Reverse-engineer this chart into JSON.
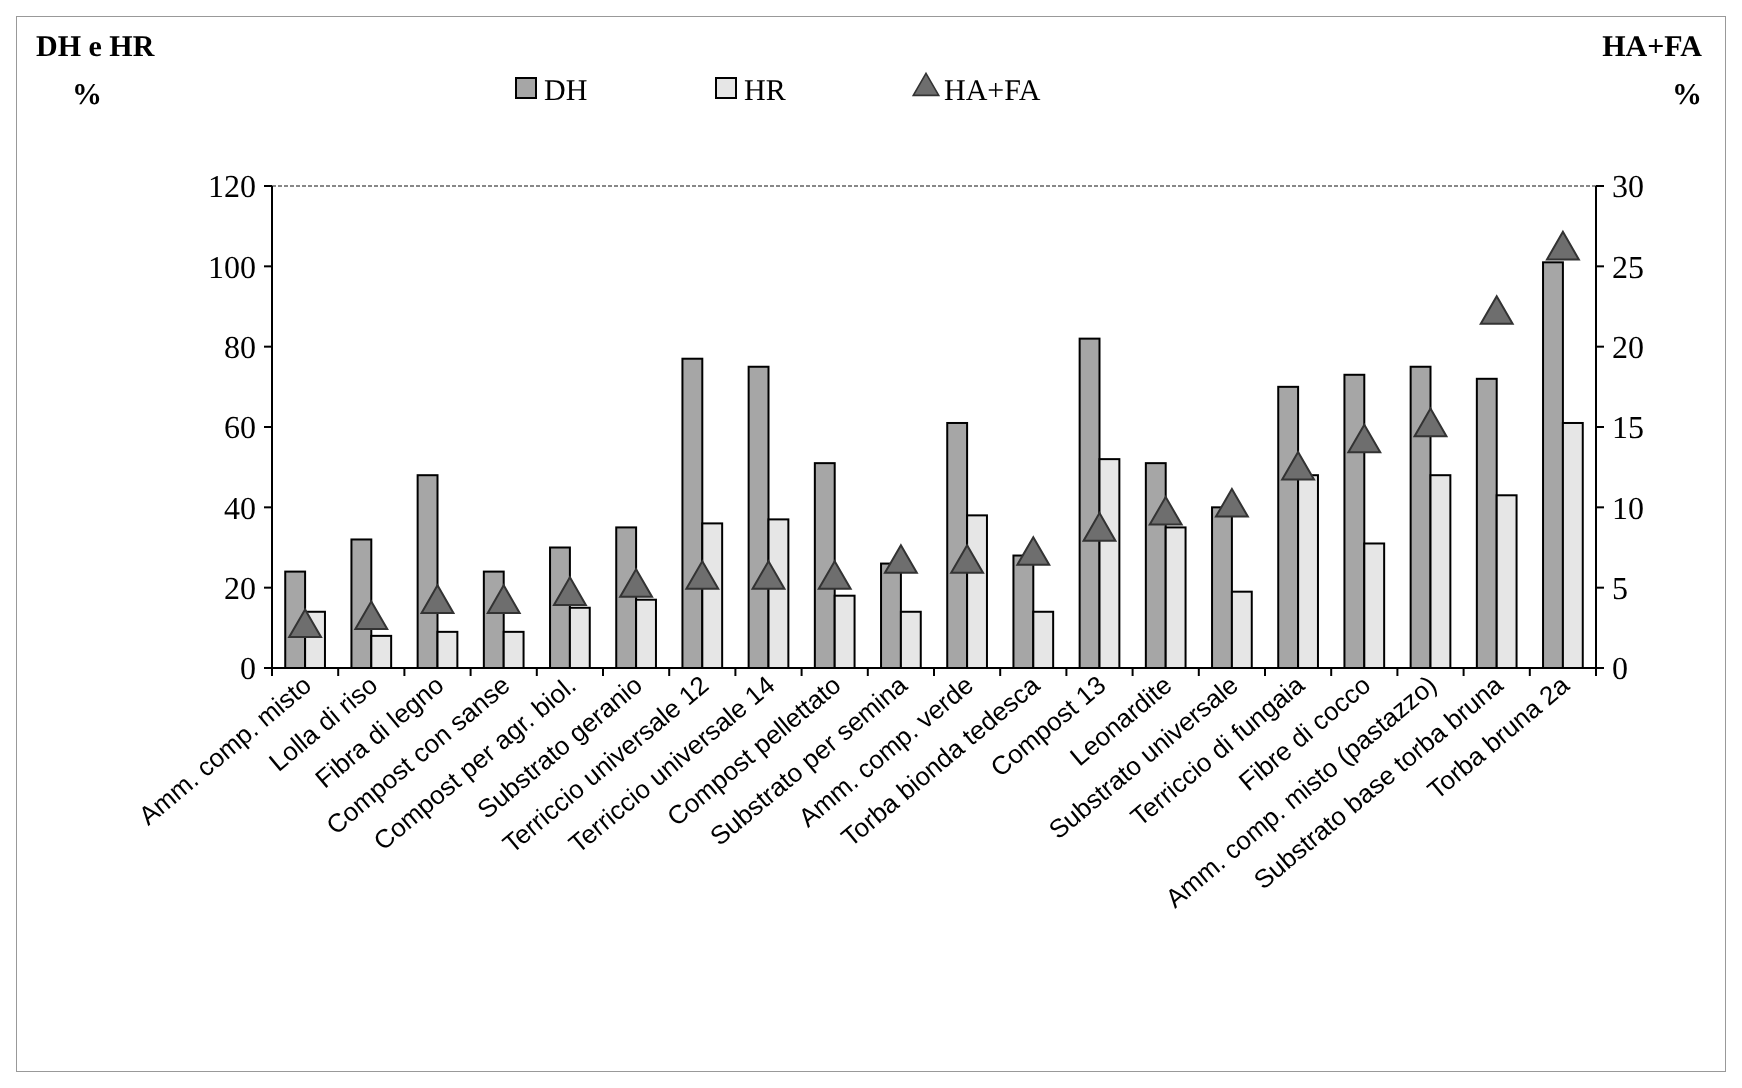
{
  "chart_data": {
    "type": "bar",
    "ylabel": "DH e HR\n%",
    "y2label": "HA+FA\n%",
    "categories": [
      "Amm. comp. misto",
      "Lolla di riso",
      "Fibra di legno",
      "Compost con sanse",
      "Compost per agr. biol.",
      "Substrato geranio",
      "Terriccio universale 12",
      "Terriccio universale 14",
      "Compost pellettato",
      "Substrato per semina",
      "Amm. comp. verde",
      "Torba bionda tedesca",
      "Compost 13",
      "Leonardite",
      "Substrato universale",
      "Terriccio di fungaia",
      "Fibre di cocco",
      "Amm. comp. misto (pastazzo)",
      "Substrato base torba bruna",
      "Torba bruna 2a"
    ],
    "series": [
      {
        "name": "DH",
        "color": "#a6a6a6",
        "values": [
          24,
          32,
          48,
          24,
          30,
          35,
          77,
          75,
          51,
          26,
          61,
          28,
          82,
          51,
          40,
          70,
          73,
          75,
          72,
          101
        ]
      },
      {
        "name": "HR",
        "color": "#e6e6e6",
        "values": [
          14,
          8,
          9,
          9,
          15,
          17,
          36,
          37,
          18,
          14,
          38,
          14,
          52,
          35,
          19,
          48,
          31,
          48,
          43,
          61
        ]
      },
      {
        "name": "HA+FA",
        "type": "scatter",
        "axis": "y2",
        "marker": "triangle",
        "color": "#6e6e6e",
        "values": [
          2.5,
          3,
          4,
          4,
          4.5,
          5,
          5.5,
          5.5,
          5.5,
          6.5,
          6.5,
          7,
          8.5,
          9.5,
          10,
          12.3,
          14,
          15,
          22,
          26
        ]
      }
    ],
    "ylim": [
      0,
      120
    ],
    "yticks": [
      0,
      20,
      40,
      60,
      80,
      100,
      120
    ],
    "y2lim": [
      0,
      30
    ],
    "y2ticks": [
      0,
      5,
      10,
      15,
      20,
      25,
      30
    ],
    "legend": "top",
    "grid": false
  }
}
